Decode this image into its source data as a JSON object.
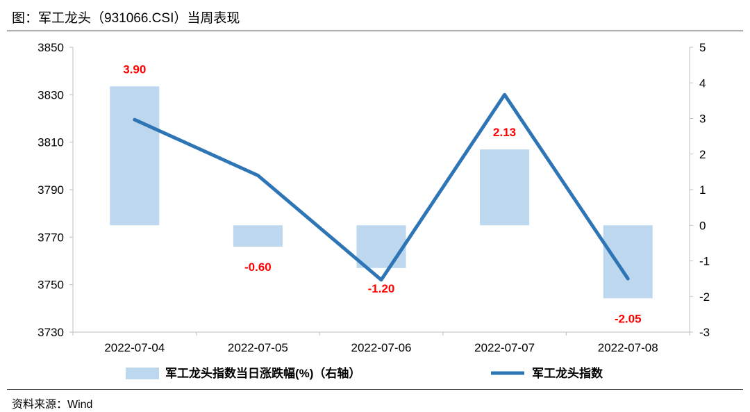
{
  "header": {
    "title": "图：军工龙头（931066.CSI）当周表现"
  },
  "footer": {
    "source": "资料来源：Wind"
  },
  "chart_data": {
    "type": "bar+line",
    "categories": [
      "2022-07-04",
      "2022-07-05",
      "2022-07-06",
      "2022-07-07",
      "2022-07-08"
    ],
    "series": [
      {
        "name": "军工龙头指数当日涨跌幅(%)（右轴）",
        "type": "bar",
        "axis": "right",
        "values": [
          3.9,
          -0.6,
          -1.2,
          2.13,
          -2.05
        ],
        "labels": [
          "3.90",
          "-0.60",
          "-1.20",
          "2.13",
          "-2.05"
        ]
      },
      {
        "name": "军工龙头指数",
        "type": "line",
        "axis": "left",
        "values": [
          3819.5,
          3796.0,
          3752.0,
          3830.0,
          3752.5
        ]
      }
    ],
    "left_axis": {
      "ylim": [
        3730,
        3850
      ],
      "ticks": [
        3730,
        3750,
        3770,
        3790,
        3810,
        3830,
        3850
      ]
    },
    "right_axis": {
      "ylim": [
        -3,
        5
      ],
      "ticks": [
        -3,
        -2,
        -1,
        0,
        1,
        2,
        3,
        4,
        5
      ]
    },
    "legend": {
      "position": "bottom"
    },
    "grid": false,
    "colors": {
      "bar": "#bdd7ee",
      "line": "#2e75b6",
      "label": "#ff0000",
      "axis": "#bfbfbf"
    }
  }
}
